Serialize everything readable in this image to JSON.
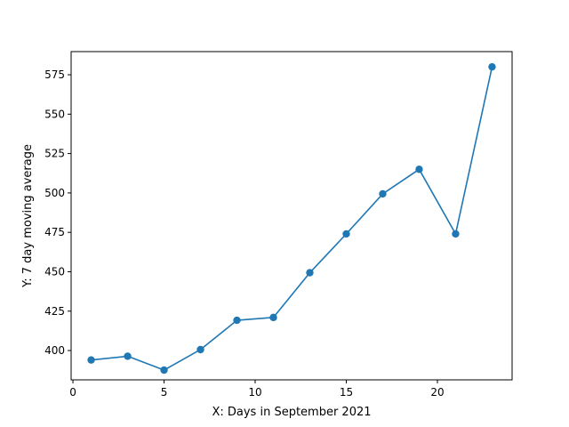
{
  "chart_data": {
    "type": "line",
    "title": "",
    "xlabel": "X: Days in September 2021",
    "ylabel": "Y: 7 day moving average",
    "xlim": [
      -0.1,
      24.1
    ],
    "ylim": [
      381.4,
      589.7
    ],
    "x_ticks": [
      0,
      5,
      10,
      15,
      20
    ],
    "x_tick_labels": [
      "0",
      "5",
      "10",
      "15",
      "20"
    ],
    "y_ticks": [
      400,
      425,
      450,
      475,
      500,
      525,
      550,
      575
    ],
    "y_tick_labels": [
      "400",
      "425",
      "450",
      "475",
      "500",
      "525",
      "550",
      "575"
    ],
    "grid": false,
    "legend": "none",
    "series": [
      {
        "x": [
          1,
          3,
          5,
          7,
          9,
          11,
          13,
          15,
          17,
          19,
          21,
          23
        ],
        "y": [
          394,
          396.4,
          387.6,
          400.6,
          419.2,
          421,
          449.4,
          474,
          499.4,
          515,
          474,
          580
        ],
        "color": "#1f77b4",
        "marker": "circle"
      }
    ]
  }
}
